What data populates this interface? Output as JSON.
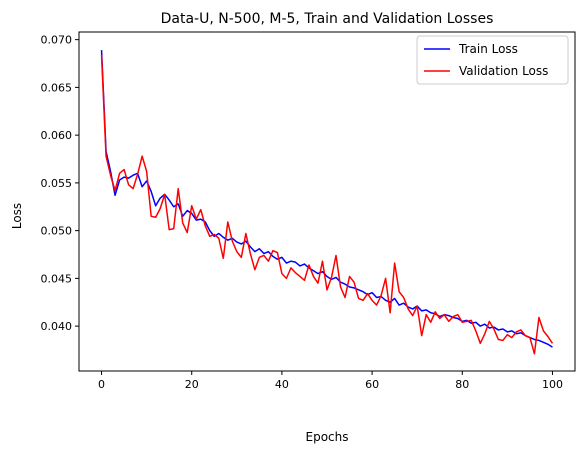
{
  "chart_data": {
    "type": "line",
    "title": "Data-U, N-500, M-5, Train and Validation Losses",
    "xlabel": "Epochs",
    "ylabel": "Loss",
    "xlim": [
      -5,
      105
    ],
    "ylim": [
      0.0353,
      0.0708
    ],
    "xticks": [
      0,
      20,
      40,
      60,
      80,
      100
    ],
    "yticks": [
      0.04,
      0.045,
      0.05,
      0.055,
      0.06,
      0.065,
      0.07
    ],
    "ytick_labels": [
      "0.040",
      "0.045",
      "0.050",
      "0.055",
      "0.060",
      "0.065",
      "0.070"
    ],
    "grid": false,
    "legend_position": "top-right",
    "series": [
      {
        "name": "Train Loss",
        "color": "#0000ff",
        "values": [
          0.0689,
          0.0583,
          0.0562,
          0.0537,
          0.0553,
          0.0556,
          0.0555,
          0.0558,
          0.056,
          0.0546,
          0.0552,
          0.0541,
          0.0526,
          0.0534,
          0.0538,
          0.0532,
          0.0525,
          0.0528,
          0.0515,
          0.0521,
          0.0518,
          0.0511,
          0.0512,
          0.0509,
          0.05,
          0.0494,
          0.0497,
          0.0493,
          0.049,
          0.0492,
          0.0488,
          0.0486,
          0.0489,
          0.0483,
          0.0478,
          0.0481,
          0.0476,
          0.0478,
          0.0473,
          0.047,
          0.0472,
          0.0466,
          0.0468,
          0.0467,
          0.0463,
          0.0465,
          0.0461,
          0.0458,
          0.0455,
          0.0457,
          0.0452,
          0.0449,
          0.0451,
          0.0446,
          0.0444,
          0.0441,
          0.044,
          0.0438,
          0.0436,
          0.0433,
          0.0435,
          0.043,
          0.0431,
          0.0427,
          0.0425,
          0.0429,
          0.0422,
          0.0424,
          0.042,
          0.0418,
          0.0421,
          0.0416,
          0.0417,
          0.0414,
          0.0413,
          0.041,
          0.0412,
          0.0411,
          0.0409,
          0.0408,
          0.0405,
          0.0406,
          0.0403,
          0.0404,
          0.04,
          0.0402,
          0.0398,
          0.0399,
          0.0396,
          0.0397,
          0.0394,
          0.0395,
          0.0392,
          0.0393,
          0.039,
          0.0388,
          0.0386,
          0.0385,
          0.0383,
          0.0381,
          0.0378
        ]
      },
      {
        "name": "Validation Loss",
        "color": "#ff0000",
        "values": [
          0.0684,
          0.0578,
          0.0558,
          0.0542,
          0.056,
          0.0564,
          0.0548,
          0.0544,
          0.0559,
          0.0578,
          0.0562,
          0.0515,
          0.0514,
          0.0523,
          0.0538,
          0.0501,
          0.0502,
          0.0544,
          0.0508,
          0.0498,
          0.0526,
          0.0512,
          0.0522,
          0.0505,
          0.0494,
          0.0496,
          0.0492,
          0.0471,
          0.0509,
          0.0489,
          0.0478,
          0.0472,
          0.0497,
          0.0476,
          0.0459,
          0.0472,
          0.0474,
          0.0468,
          0.0479,
          0.0477,
          0.0455,
          0.045,
          0.0461,
          0.0456,
          0.0452,
          0.0448,
          0.0464,
          0.0452,
          0.0445,
          0.0468,
          0.0438,
          0.0451,
          0.0474,
          0.0441,
          0.043,
          0.0452,
          0.0446,
          0.0429,
          0.0427,
          0.0434,
          0.0427,
          0.0422,
          0.0432,
          0.045,
          0.0414,
          0.0466,
          0.0436,
          0.043,
          0.0418,
          0.0411,
          0.0421,
          0.039,
          0.0412,
          0.0404,
          0.0415,
          0.0408,
          0.0412,
          0.0405,
          0.041,
          0.0412,
          0.0404,
          0.0405,
          0.0406,
          0.0395,
          0.0382,
          0.0392,
          0.0405,
          0.0397,
          0.0386,
          0.0385,
          0.0391,
          0.0388,
          0.0394,
          0.0396,
          0.039,
          0.0388,
          0.0371,
          0.0409,
          0.0395,
          0.0389,
          0.0382
        ]
      }
    ]
  }
}
